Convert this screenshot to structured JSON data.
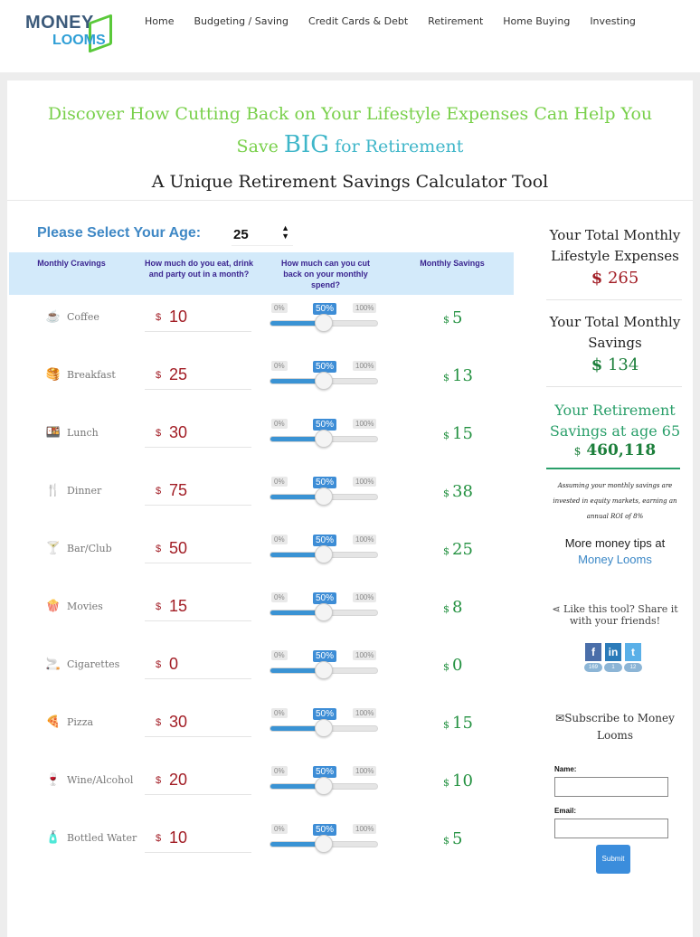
{
  "header": {
    "logo_line1": "MONEY",
    "logo_line2": "LOOMS",
    "nav": [
      "Home",
      "Budgeting / Saving",
      "Credit Cards & Debt",
      "Retirement",
      "Home Buying",
      "Investing"
    ]
  },
  "headline": {
    "part1": "Discover How Cutting Back on Your Lifestyle Expenses Can Help You Save ",
    "big": "BIG",
    "part2": " for Retirement"
  },
  "subtitle": "A Unique Retirement Savings Calculator Tool",
  "age": {
    "label": "Please Select Your Age:",
    "value": "25"
  },
  "table": {
    "headers": [
      "Monthly Cravings",
      "How much do you eat, drink and party out in a month?",
      "How much can you cut back on your monthly spend?",
      "Monthly Savings"
    ],
    "slider_labels": [
      "0%",
      "50%",
      "100%"
    ],
    "currency": "$",
    "rows": [
      {
        "name": "Coffee",
        "icon": "coffee-icon",
        "glyph": "☕",
        "amount": "10",
        "cut_fraction": 0.5,
        "savings": "5"
      },
      {
        "name": "Breakfast",
        "icon": "breakfast-icon",
        "glyph": "🥞",
        "amount": "25",
        "cut_fraction": 0.5,
        "savings": "13"
      },
      {
        "name": "Lunch",
        "icon": "lunch-icon",
        "glyph": "🍱",
        "amount": "30",
        "cut_fraction": 0.5,
        "savings": "15"
      },
      {
        "name": "Dinner",
        "icon": "dinner-icon",
        "glyph": "🍴",
        "amount": "75",
        "cut_fraction": 0.5,
        "savings": "38"
      },
      {
        "name": "Bar/Club",
        "icon": "bar-icon",
        "glyph": "🍸",
        "amount": "50",
        "cut_fraction": 0.5,
        "savings": "25"
      },
      {
        "name": "Movies",
        "icon": "movies-icon",
        "glyph": "🍿",
        "amount": "15",
        "cut_fraction": 0.5,
        "savings": "8"
      },
      {
        "name": "Cigarettes",
        "icon": "cigarettes-icon",
        "glyph": "🚬",
        "amount": "0",
        "cut_fraction": 0.5,
        "savings": "0"
      },
      {
        "name": "Pizza",
        "icon": "pizza-icon",
        "glyph": "🍕",
        "amount": "30",
        "cut_fraction": 0.5,
        "savings": "15"
      },
      {
        "name": "Wine/Alcohol",
        "icon": "wine-icon",
        "glyph": "🍷",
        "amount": "20",
        "cut_fraction": 0.5,
        "savings": "10"
      },
      {
        "name": "Bottled Water",
        "icon": "water-bottle-icon",
        "glyph": "🧴",
        "amount": "10",
        "cut_fraction": 0.5,
        "savings": "5"
      }
    ]
  },
  "sidebar": {
    "expenses_title": "Your Total Monthly Lifestyle Expenses",
    "expenses_currency": "$",
    "expenses_value": "265",
    "savings_title": "Your Total Monthly Savings",
    "savings_currency": "$",
    "savings_value": "134",
    "retirement_title": "Your Retirement Savings at age 65",
    "retirement_currency": "$",
    "retirement_value": "460,118",
    "note": "Assuming your monthly savings are invested in equity markets, earning an annual ROI of 8%",
    "tips_text": "More money tips at",
    "tips_link": "Money Looms",
    "share_text": "Like this tool? Share it with your friends!",
    "socials": [
      {
        "icon": "facebook-icon",
        "glyph": "f",
        "color": "#4a6ea9",
        "count": "169"
      },
      {
        "icon": "linkedin-icon",
        "glyph": "in",
        "color": "#2b7bb9",
        "count": "1"
      },
      {
        "icon": "twitter-icon",
        "glyph": "t",
        "color": "#5ab0e8",
        "count": "12"
      }
    ],
    "subscribe_title": "Subscribe to Money Looms",
    "name_label": "Name:",
    "email_label": "Email:",
    "submit_label": "Submit"
  }
}
